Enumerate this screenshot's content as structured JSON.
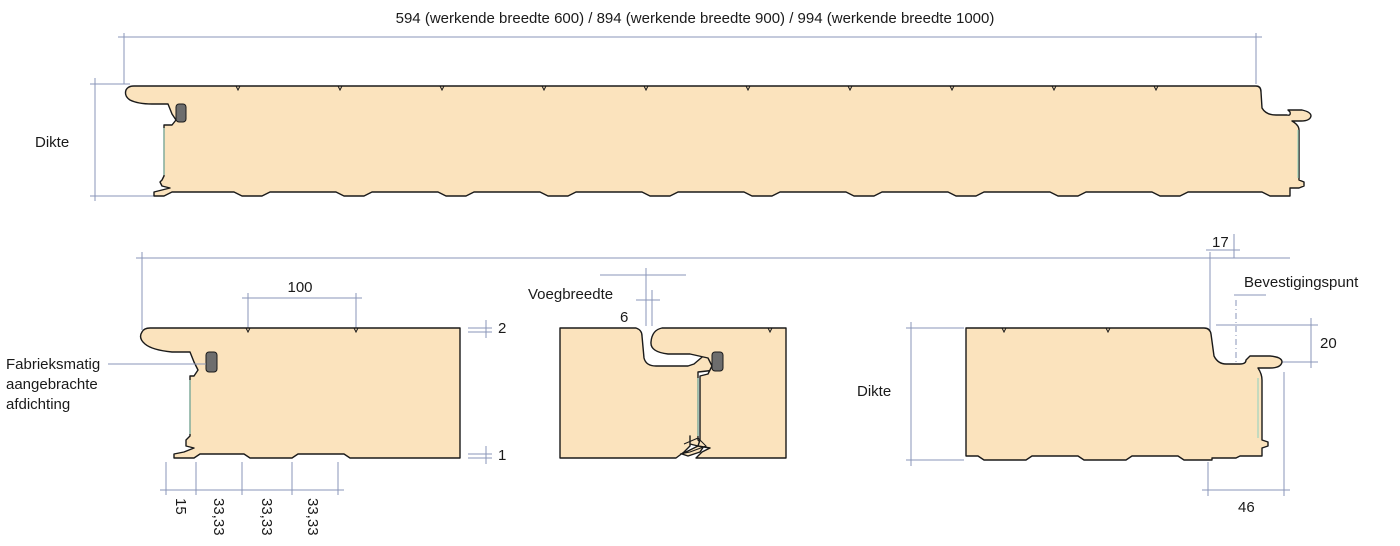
{
  "diagram": {
    "top_width_label": "594 (werkende breedte 600) / 894 (werkende breedte 900) / 994 (werkende breedte 1000)",
    "dikte_left": "Dikte",
    "dikte_right": "Dikte",
    "rib_pitch": "100",
    "top_sheet": "2",
    "bottom_sheet": "1",
    "seal_label_1": "Fabrieksmatig",
    "seal_label_2": "aangebrachte",
    "seal_label_3": "afdichting",
    "joint_label": "Voegbreedte",
    "joint_value": "6",
    "edge_offset": "17",
    "fixing_point": "Bevestigingspunt",
    "tongue_height": "20",
    "tongue_width": "46",
    "bottom_dims": [
      "15",
      "33,33",
      "33,33",
      "33,33"
    ]
  },
  "colors": {
    "panel_fill": "#fbe3bd",
    "outline": "#1a1a1a",
    "dimension_lines": "#8a96b8",
    "seal": "#6d6d6d"
  }
}
